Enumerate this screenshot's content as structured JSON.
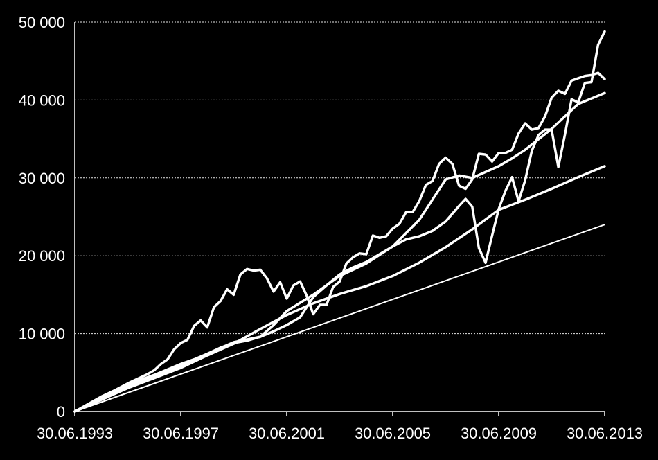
{
  "chart_data": {
    "type": "line",
    "title": "",
    "xlabel": "",
    "ylabel": "",
    "grid": true,
    "legend": "none",
    "xlim": [
      "1993-06-30",
      "2013-06-30"
    ],
    "ylim": [
      0,
      50000
    ],
    "x_tick_labels": [
      "30.06.1993",
      "30.06.1997",
      "30.06.2001",
      "30.06.2005",
      "30.06.2009",
      "30.06.2013"
    ],
    "y_tick_labels": [
      "0",
      "10 000",
      "20 000",
      "30 000",
      "40 000",
      "50 000"
    ],
    "y_tick_values": [
      0,
      10000,
      20000,
      30000,
      40000,
      50000
    ],
    "colors": {
      "background": "#000000",
      "lines": "#ffffff",
      "text": "#ffffff"
    },
    "series": [
      {
        "x": [
          "1993-06-30",
          "1994-06-30",
          "1995-06-30",
          "1996-06-30",
          "1997-06-30",
          "1998-06-30",
          "1999-06-30",
          "2000-06-30",
          "2001-06-30",
          "2002-06-30",
          "2003-06-30",
          "2004-06-30",
          "2005-06-30",
          "2006-06-30",
          "2007-06-30",
          "2008-06-30",
          "2009-06-30",
          "2010-06-30",
          "2011-06-30",
          "2012-06-30",
          "2013-06-30"
        ],
        "values": [
          0,
          1200,
          2400,
          3600,
          4800,
          6000,
          7200,
          8400,
          9600,
          10800,
          12000,
          13200,
          14400,
          15600,
          16800,
          18000,
          19200,
          20400,
          21600,
          22800,
          24000
        ]
      },
      {
        "x": [
          "1993-06-30",
          "1994-06-30",
          "1995-06-30",
          "1996-06-30",
          "1997-06-30",
          "1998-06-30",
          "1999-06-30",
          "2000-06-30",
          "2001-06-30",
          "2002-06-30",
          "2003-06-30",
          "2004-06-30",
          "2005-06-30",
          "2006-06-30",
          "2007-06-30",
          "2008-06-30",
          "2009-06-30",
          "2010-06-30",
          "2011-06-30",
          "2012-06-30",
          "2013-06-30"
        ],
        "values": [
          0,
          1500,
          3000,
          4300,
          5600,
          7200,
          8700,
          10600,
          12400,
          13900,
          15100,
          16100,
          17400,
          19100,
          21100,
          23400,
          25900,
          27200,
          28600,
          30100,
          31500
        ]
      },
      {
        "x": [
          "1993-06-30",
          "1994-06-30",
          "1995-06-30",
          "1996-06-30",
          "1997-06-30",
          "1997-12-31",
          "1998-06-30",
          "1999-06-30",
          "2000-06-30",
          "2000-12-31",
          "2001-06-30",
          "2002-06-30",
          "2003-06-30",
          "2004-06-30",
          "2005-06-30",
          "2006-06-30",
          "2007-06-30",
          "2007-12-31",
          "2008-06-30",
          "2009-06-30",
          "2009-12-31",
          "2010-06-30",
          "2011-06-30",
          "2012-06-30",
          "2013-06-30"
        ],
        "values": [
          0,
          1700,
          3300,
          4600,
          5800,
          6600,
          7400,
          8900,
          9600,
          11100,
          12900,
          15000,
          17400,
          19000,
          21200,
          24600,
          29800,
          30300,
          30000,
          31500,
          32500,
          33600,
          36300,
          39500,
          40900
        ]
      },
      {
        "x": [
          "1993-06-30",
          "1994-06-30",
          "1995-06-30",
          "1996-03-31",
          "1996-06-30",
          "1996-09-30",
          "1996-12-31",
          "1997-03-31",
          "1997-06-30",
          "1997-09-30",
          "1997-12-31",
          "1998-03-31",
          "1998-06-30",
          "1998-09-30",
          "1998-12-31",
          "1999-03-31",
          "1999-06-30",
          "1999-09-30",
          "1999-12-31",
          "2000-03-31",
          "2000-06-30",
          "2000-09-30",
          "2000-12-31",
          "2001-03-31",
          "2001-06-30",
          "2001-09-30",
          "2001-12-31",
          "2002-03-31",
          "2002-06-30",
          "2002-09-30",
          "2002-12-31",
          "2003-03-31",
          "2003-06-30",
          "2003-09-30",
          "2003-12-31",
          "2004-03-31",
          "2004-06-30",
          "2004-09-30",
          "2004-12-31",
          "2005-03-31",
          "2005-06-30",
          "2005-09-30",
          "2005-12-31",
          "2006-03-31",
          "2006-06-30",
          "2006-09-30",
          "2006-12-31",
          "2007-03-31",
          "2007-06-30",
          "2007-09-30",
          "2007-12-31",
          "2008-03-31",
          "2008-06-30",
          "2008-09-30",
          "2008-12-31",
          "2009-03-31",
          "2009-06-30",
          "2009-09-30",
          "2009-12-31",
          "2010-03-31",
          "2010-06-30",
          "2010-09-30",
          "2010-12-31",
          "2011-03-31",
          "2011-06-30",
          "2011-09-30",
          "2011-12-31",
          "2012-03-31",
          "2012-06-30",
          "2012-09-30",
          "2012-12-31",
          "2013-03-31",
          "2013-06-30"
        ],
        "values": [
          0,
          1800,
          3600,
          4800,
          5300,
          6100,
          6700,
          8000,
          8800,
          9200,
          11000,
          11700,
          10800,
          13400,
          14200,
          15700,
          15000,
          17600,
          18300,
          18100,
          18200,
          17100,
          15400,
          16600,
          14500,
          16200,
          16700,
          14900,
          12500,
          13700,
          13700,
          16000,
          16700,
          19000,
          19800,
          20300,
          20200,
          22600,
          22300,
          22500,
          23500,
          24100,
          25600,
          25600,
          27000,
          29100,
          29600,
          31800,
          32600,
          31800,
          29000,
          28600,
          29800,
          33100,
          33000,
          32100,
          33200,
          33200,
          33600,
          35700,
          37000,
          36200,
          36400,
          37900,
          40300,
          41200,
          40800,
          42500,
          42800,
          43100,
          43200,
          43500,
          42700
        ]
      },
      {
        "x": [
          "1993-06-30",
          "1994-06-30",
          "1995-06-30",
          "1996-06-30",
          "1997-06-30",
          "1997-12-31",
          "1998-06-30",
          "1998-12-31",
          "1999-06-30",
          "1999-12-31",
          "2000-06-30",
          "2000-12-31",
          "2001-06-30",
          "2001-12-31",
          "2002-06-30",
          "2002-12-31",
          "2003-06-30",
          "2003-12-31",
          "2004-06-30",
          "2004-12-31",
          "2005-06-30",
          "2005-12-31",
          "2006-06-30",
          "2006-12-31",
          "2007-06-30",
          "2007-12-31",
          "2008-03-31",
          "2008-06-30",
          "2008-09-30",
          "2008-12-31",
          "2009-03-31",
          "2009-06-30",
          "2009-09-30",
          "2009-12-31",
          "2010-03-31",
          "2010-06-30",
          "2010-09-30",
          "2010-12-31",
          "2011-03-31",
          "2011-06-30",
          "2011-09-30",
          "2011-12-31",
          "2012-03-31",
          "2012-06-30",
          "2012-09-30",
          "2012-12-31",
          "2013-03-31",
          "2013-06-30"
        ],
        "values": [
          0,
          1900,
          3500,
          4700,
          6100,
          6700,
          7400,
          8200,
          8800,
          9100,
          9600,
          10300,
          11100,
          12100,
          14700,
          16200,
          17600,
          18500,
          19200,
          20200,
          21200,
          22100,
          22500,
          23200,
          24400,
          26400,
          27300,
          26300,
          21000,
          19100,
          22600,
          26000,
          28300,
          30100,
          27000,
          29700,
          33500,
          35500,
          36200,
          36200,
          31400,
          35600,
          40100,
          39700,
          42200,
          42300,
          47100,
          48800
        ]
      }
    ]
  }
}
